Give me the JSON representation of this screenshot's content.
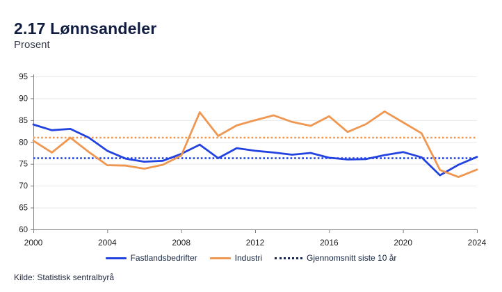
{
  "header": {
    "title": "2.17 Lønnsandeler",
    "subtitle": "Prosent"
  },
  "source": {
    "text": "Kilde: Statistisk sentralbyrå"
  },
  "legend": {
    "items": [
      {
        "label": "Fastlandsbedrifter",
        "color": "#2343e0",
        "style": "solid"
      },
      {
        "label": "Industri",
        "color": "#ef9751",
        "style": "solid"
      },
      {
        "label": "Gjennomsnitt siste 10 år",
        "color": "#16234d",
        "style": "dotted"
      }
    ]
  },
  "colors": {
    "title": "#101c40",
    "axis": "#808080",
    "gridline": "#e8e8e8",
    "tick_label": "#1a1a1a",
    "fastlandsbedrifter": "#2343e0",
    "industri": "#ef9751",
    "legend_dotted": "#16234d"
  },
  "chart_data": {
    "type": "line",
    "title": "2.17 Lønnsandeler",
    "ylabel": "Prosent",
    "x": [
      2000,
      2001,
      2002,
      2003,
      2004,
      2005,
      2006,
      2007,
      2008,
      2009,
      2010,
      2011,
      2012,
      2013,
      2014,
      2015,
      2016,
      2017,
      2018,
      2019,
      2020,
      2021,
      2022,
      2023,
      2024
    ],
    "series": [
      {
        "name": "Fastlandsbedrifter",
        "color": "#2343e0",
        "line": "solid",
        "values": [
          84.0,
          82.7,
          83.0,
          81.0,
          78.0,
          76.2,
          75.5,
          75.7,
          77.3,
          79.4,
          76.3,
          78.6,
          78.0,
          77.6,
          77.1,
          77.5,
          76.4,
          76.0,
          76.1,
          77.0,
          77.7,
          76.5,
          72.4,
          74.8,
          76.6
        ]
      },
      {
        "name": "Industri",
        "color": "#ef9751",
        "line": "solid",
        "values": [
          80.3,
          77.6,
          81.0,
          77.7,
          74.7,
          74.6,
          73.9,
          74.8,
          76.9,
          86.8,
          81.4,
          83.8,
          85.0,
          86.1,
          84.6,
          83.7,
          85.9,
          82.3,
          84.1,
          87.0,
          84.5,
          82.0,
          73.6,
          72.0,
          73.7
        ]
      },
      {
        "name": "Gjennomsnitt siste 10 år (fastlandsbedrifter)",
        "color": "#2343e0",
        "line": "dotted",
        "constant": 76.3
      },
      {
        "name": "Gjennomsnitt siste 10 år (industri)",
        "color": "#ef9751",
        "line": "dotted",
        "constant": 81.0
      }
    ],
    "ylim": [
      60,
      95
    ],
    "ytick_step": 5,
    "xticks": [
      2000,
      2004,
      2008,
      2012,
      2016,
      2020,
      2024
    ],
    "grid": "horizontal",
    "legend_position": "bottom"
  }
}
